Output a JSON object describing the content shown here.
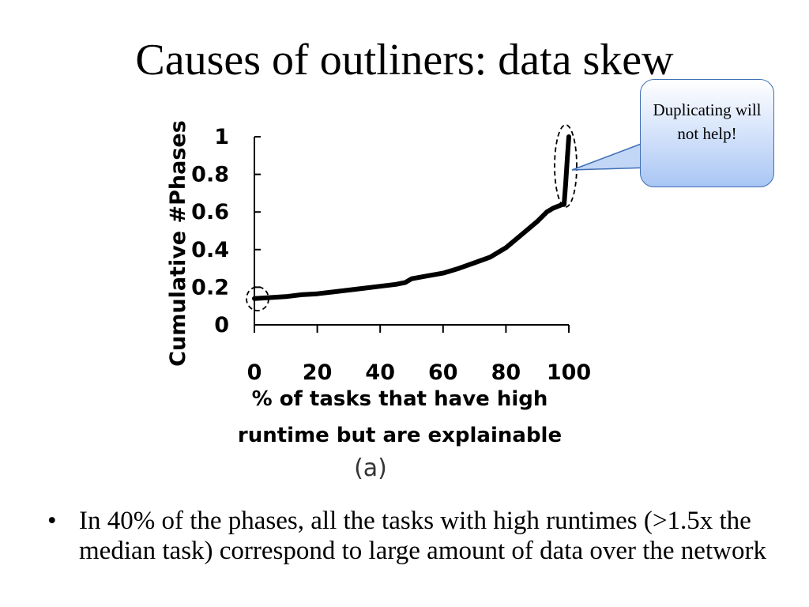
{
  "slide": {
    "title": "Causes of outliners: data skew",
    "callout": "Duplicating will not help!",
    "bullets": [
      "In 40% of the phases, all the tasks with high runtimes (>1.5x the median task) correspond to large amount of data over the network"
    ]
  },
  "chart_data": {
    "type": "line",
    "title": "",
    "subtitle": "(a)",
    "xlabel": [
      "% of tasks that have high",
      "runtime but are explainable"
    ],
    "ylabel": "Cumulative #Phases",
    "xlim": [
      0,
      100
    ],
    "ylim": [
      0,
      1
    ],
    "x_ticks": [
      "0",
      "20",
      "40",
      "60",
      "80",
      "100"
    ],
    "y_ticks": [
      "0",
      "0.2",
      "0.4",
      "0.6",
      "0.8",
      "1"
    ],
    "grid": false,
    "series": [
      {
        "name": "",
        "x": [
          0,
          5,
          10,
          15,
          20,
          25,
          30,
          35,
          40,
          45,
          48,
          50,
          55,
          60,
          65,
          70,
          75,
          80,
          85,
          90,
          93,
          95,
          98,
          98.5,
          99,
          99.5,
          100
        ],
        "y": [
          0.14,
          0.145,
          0.15,
          0.16,
          0.165,
          0.175,
          0.185,
          0.195,
          0.205,
          0.215,
          0.225,
          0.245,
          0.26,
          0.275,
          0.3,
          0.33,
          0.36,
          0.41,
          0.48,
          0.55,
          0.6,
          0.62,
          0.64,
          0.64,
          0.75,
          0.88,
          1.0
        ]
      }
    ]
  }
}
